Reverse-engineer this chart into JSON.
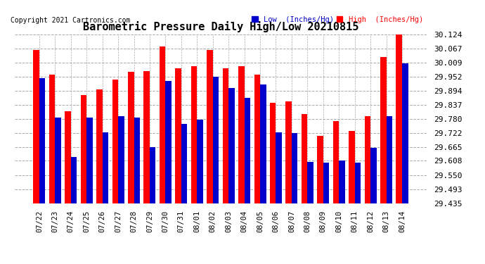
{
  "title": "Barometric Pressure Daily High/Low 20210815",
  "copyright": "Copyright 2021 Cartronics.com",
  "legend_low": "Low  (Inches/Hg)",
  "legend_high": "High  (Inches/Hg)",
  "dates": [
    "07/22",
    "07/23",
    "07/24",
    "07/25",
    "07/26",
    "07/27",
    "07/28",
    "07/29",
    "07/30",
    "07/31",
    "08/01",
    "08/02",
    "08/03",
    "08/04",
    "08/05",
    "08/06",
    "08/07",
    "08/08",
    "08/09",
    "08/10",
    "08/11",
    "08/12",
    "08/13",
    "08/14"
  ],
  "high": [
    30.06,
    29.96,
    29.81,
    29.875,
    29.9,
    29.94,
    29.97,
    29.975,
    30.075,
    29.985,
    29.995,
    30.06,
    29.985,
    29.995,
    29.96,
    29.845,
    29.85,
    29.8,
    29.71,
    29.77,
    29.73,
    29.79,
    30.03,
    30.124
  ],
  "low": [
    29.945,
    29.785,
    29.625,
    29.785,
    29.725,
    29.79,
    29.785,
    29.665,
    29.935,
    29.76,
    29.775,
    29.95,
    29.905,
    29.865,
    29.92,
    29.725,
    29.72,
    29.605,
    29.6,
    29.61,
    29.6,
    29.66,
    29.79,
    30.005
  ],
  "ylim_min": 29.435,
  "ylim_max": 30.124,
  "yticks": [
    29.435,
    29.493,
    29.55,
    29.608,
    29.665,
    29.722,
    29.78,
    29.837,
    29.894,
    29.952,
    30.009,
    30.067,
    30.124
  ],
  "bar_width": 0.38,
  "color_high": "#ff0000",
  "color_low": "#0000cc",
  "bg_color": "#ffffff",
  "grid_color": "#aaaaaa",
  "title_color": "#000000",
  "title_fontsize": 11,
  "tick_fontsize": 8,
  "copyright_fontsize": 7
}
